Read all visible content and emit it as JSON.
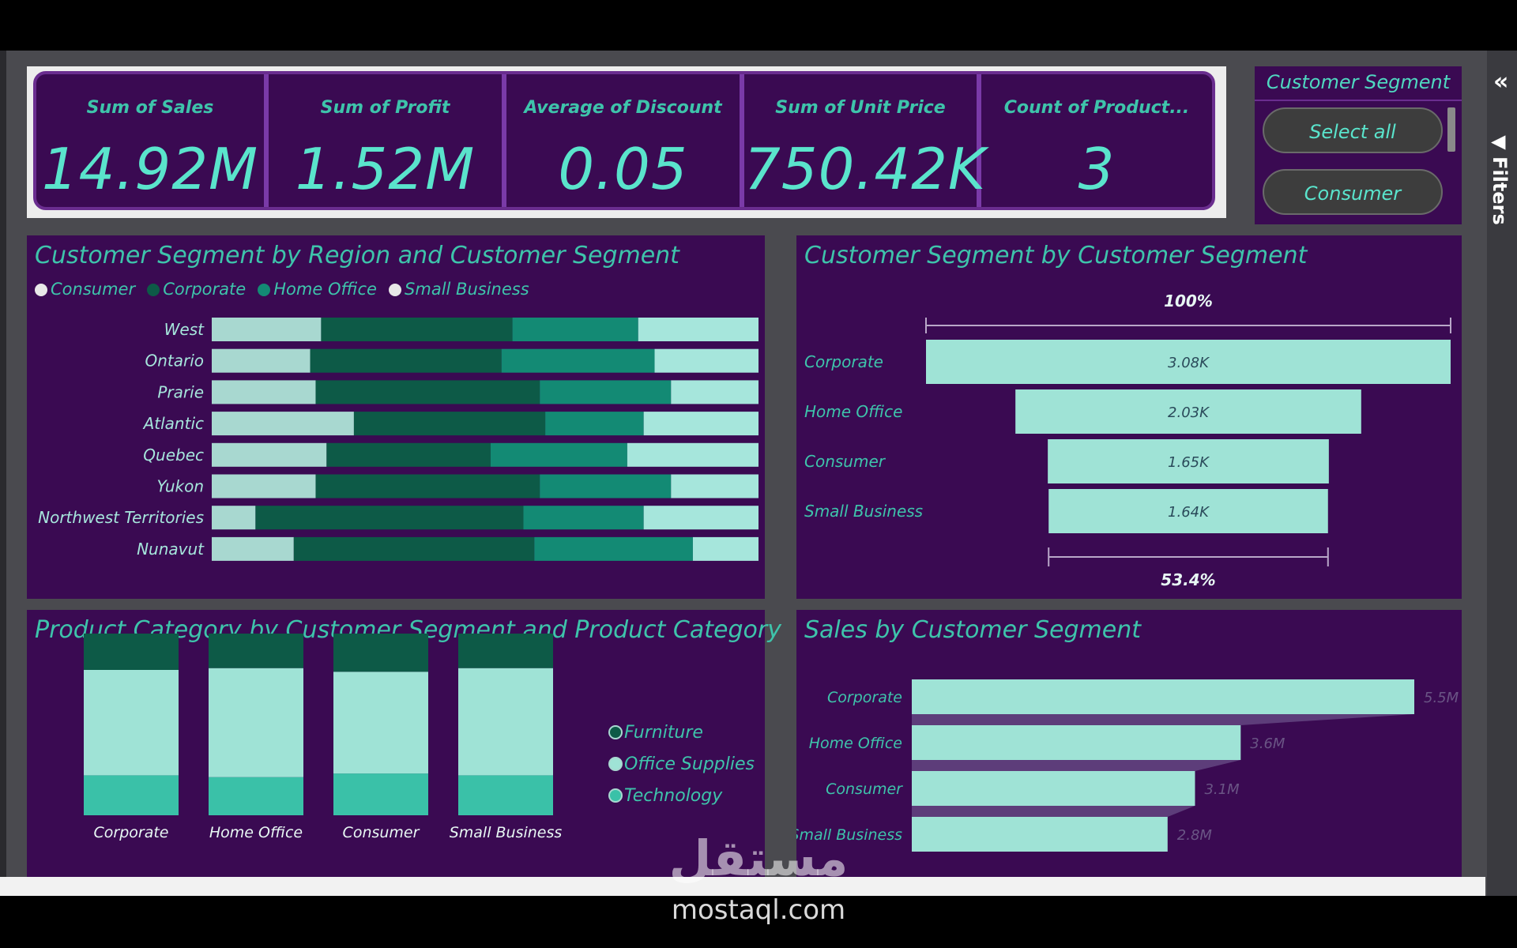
{
  "kpis": [
    {
      "label": "Sum of Sales",
      "value": "14.92M"
    },
    {
      "label": "Sum of Profit",
      "value": "1.52M"
    },
    {
      "label": "Average of Discount",
      "value": "0.05"
    },
    {
      "label": "Sum of Unit Price",
      "value": "750.42K"
    },
    {
      "label": "Count of Product...",
      "value": "3"
    }
  ],
  "slicer": {
    "title": "Customer Segment",
    "options": [
      "Select all",
      "Consumer"
    ]
  },
  "filters_label": "Filters",
  "watermark": {
    "arabic": "مستقل",
    "latin": "mostaql.com"
  },
  "colors": {
    "background": "#3a0a52",
    "consumer": "#a8d8d0",
    "corporate": "#0d5a47",
    "home_office": "#138a74",
    "small_business": "#a6e6dc",
    "bar_light": "#9fe3d6",
    "text_accent": "#3ec4ab"
  },
  "chart_data": [
    {
      "id": "region_chart",
      "type": "bar",
      "orientation": "horizontal",
      "stacking": "100%",
      "title": "Customer Segment by Region and Customer Segment",
      "legend_position": "top-left",
      "categories": [
        "West",
        "Ontario",
        "Prarie",
        "Atlantic",
        "Quebec",
        "Yukon",
        "Northwest Territories",
        "Nunavut"
      ],
      "series": [
        {
          "name": "Consumer",
          "values": [
            20,
            18,
            19,
            26,
            21,
            19,
            8,
            15
          ]
        },
        {
          "name": "Corporate",
          "values": [
            35,
            35,
            41,
            35,
            30,
            41,
            49,
            44
          ]
        },
        {
          "name": "Home Office",
          "values": [
            23,
            28,
            24,
            18,
            25,
            24,
            22,
            29
          ]
        },
        {
          "name": "Small Business",
          "values": [
            22,
            19,
            16,
            21,
            24,
            16,
            21,
            12
          ]
        }
      ]
    },
    {
      "id": "funnel_chart",
      "type": "bar",
      "subtype": "funnel",
      "title": "Customer Segment by Customer Segment",
      "categories": [
        "Corporate",
        "Home Office",
        "Consumer",
        "Small Business"
      ],
      "values": [
        3080,
        2030,
        1650,
        1640
      ],
      "data_labels": [
        "3.08K",
        "2.03K",
        "1.65K",
        "1.64K"
      ],
      "top_label": "100%",
      "bottom_label": "53.4%"
    },
    {
      "id": "category_chart",
      "type": "bar",
      "stacking": "100%",
      "title": "Product Category by Customer Segment and Product Category",
      "legend_position": "right",
      "categories": [
        "Corporate",
        "Home Office",
        "Consumer",
        "Small Business"
      ],
      "series": [
        {
          "name": "Furniture",
          "values": [
            20,
            19,
            21,
            19
          ]
        },
        {
          "name": "Office Supplies",
          "values": [
            58,
            60,
            56,
            59
          ]
        },
        {
          "name": "Technology",
          "values": [
            22,
            21,
            23,
            22
          ]
        }
      ]
    },
    {
      "id": "sales_chart",
      "type": "bar",
      "orientation": "horizontal",
      "title": "Sales by Customer Segment",
      "categories": [
        "Corporate",
        "Home Office",
        "Consumer",
        "Small Business"
      ],
      "values": [
        5.5,
        3.6,
        3.1,
        2.8
      ],
      "data_labels": [
        "5.5M",
        "3.6M",
        "3.1M",
        "2.8M"
      ],
      "xlim": [
        0,
        5.5
      ],
      "unit": "M"
    }
  ]
}
